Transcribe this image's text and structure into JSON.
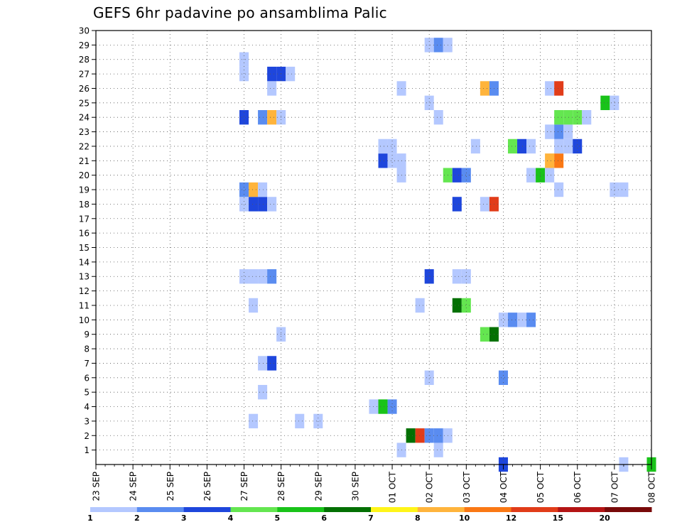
{
  "chart_data": {
    "type": "heatmap",
    "title": "GEFS 6hr padavine po ansamblima Palic",
    "xlabel": "",
    "ylabel": "",
    "x_start": "2025-09-23T00:00",
    "x_end": "2025-10-08T00:00",
    "x_step_hours": 6,
    "x_tick_labels": [
      "23 SEP",
      "24 SEP",
      "25 SEP",
      "26 SEP",
      "27 SEP",
      "28 SEP",
      "29 SEP",
      "30 SEP",
      "01 OCT",
      "02 OCT",
      "03 OCT",
      "04 OCT",
      "05 OCT",
      "06 OCT",
      "07 OCT",
      "08 OCT"
    ],
    "y_tick_labels": [
      "1",
      "2",
      "3",
      "4",
      "5",
      "6",
      "7",
      "8",
      "9",
      "10",
      "11",
      "12",
      "13",
      "14",
      "15",
      "16",
      "17",
      "18",
      "19",
      "20",
      "21",
      "22",
      "23",
      "24",
      "25",
      "26",
      "27",
      "28",
      "29",
      "30"
    ],
    "ylim": [
      0,
      30
    ],
    "grid": true,
    "colorbar": {
      "labels": [
        "1",
        "2",
        "3",
        "4",
        "5",
        "6",
        "7",
        "8",
        "10",
        "12",
        "15",
        "20"
      ],
      "colors": [
        "#b4c8ff",
        "#5a8cf0",
        "#1e46dc",
        "#64e650",
        "#19c319",
        "#037003",
        "#fff519",
        "#ffb43c",
        "#fa7814",
        "#e13c19",
        "#b41414",
        "#780a0a"
      ]
    },
    "cells": [
      {
        "x": "2025-10-01T06:00",
        "y": 1,
        "value": 1.5
      },
      {
        "x": "2025-10-02T06:00",
        "y": 1,
        "value": 1.5
      },
      {
        "x": "2025-10-01T12:00",
        "y": 2,
        "value": 6.5
      },
      {
        "x": "2025-10-01T18:00",
        "y": 2,
        "value": 13
      },
      {
        "x": "2025-10-02T00:00",
        "y": 2,
        "value": 2.5
      },
      {
        "x": "2025-10-02T06:00",
        "y": 2,
        "value": 2.5
      },
      {
        "x": "2025-10-02T12:00",
        "y": 2,
        "value": 1.5
      },
      {
        "x": "2025-09-27T06:00",
        "y": 3,
        "value": 1.5
      },
      {
        "x": "2025-09-28T12:00",
        "y": 3,
        "value": 1.5
      },
      {
        "x": "2025-09-29T00:00",
        "y": 3,
        "value": 1.5
      },
      {
        "x": "2025-09-30T12:00",
        "y": 4,
        "value": 1.5
      },
      {
        "x": "2025-09-30T18:00",
        "y": 4,
        "value": 5.5
      },
      {
        "x": "2025-10-01T00:00",
        "y": 4,
        "value": 2.5
      },
      {
        "x": "2025-09-27T12:00",
        "y": 5,
        "value": 1.5
      },
      {
        "x": "2025-10-02T00:00",
        "y": 6,
        "value": 1.5
      },
      {
        "x": "2025-10-04T00:00",
        "y": 6,
        "value": 2.5
      },
      {
        "x": "2025-09-27T12:00",
        "y": 7,
        "value": 1.5
      },
      {
        "x": "2025-09-27T18:00",
        "y": 7,
        "value": 3.5
      },
      {
        "x": "2025-09-28T00:00",
        "y": 9,
        "value": 1.5
      },
      {
        "x": "2025-10-03T12:00",
        "y": 9,
        "value": 4.5
      },
      {
        "x": "2025-10-03T18:00",
        "y": 9,
        "value": 6.5
      },
      {
        "x": "2025-10-04T00:00",
        "y": 10,
        "value": 1.5
      },
      {
        "x": "2025-10-04T06:00",
        "y": 10,
        "value": 2.5
      },
      {
        "x": "2025-10-04T12:00",
        "y": 10,
        "value": 1.5
      },
      {
        "x": "2025-10-04T18:00",
        "y": 10,
        "value": 2.5
      },
      {
        "x": "2025-09-27T06:00",
        "y": 11,
        "value": 1.5
      },
      {
        "x": "2025-10-01T18:00",
        "y": 11,
        "value": 1.5
      },
      {
        "x": "2025-10-02T18:00",
        "y": 11,
        "value": 6.5
      },
      {
        "x": "2025-10-03T00:00",
        "y": 11,
        "value": 4.5
      },
      {
        "x": "2025-09-27T00:00",
        "y": 13,
        "value": 1.5
      },
      {
        "x": "2025-09-27T06:00",
        "y": 13,
        "value": 1.5
      },
      {
        "x": "2025-09-27T12:00",
        "y": 13,
        "value": 1.5
      },
      {
        "x": "2025-09-27T18:00",
        "y": 13,
        "value": 2.5
      },
      {
        "x": "2025-10-02T00:00",
        "y": 13,
        "value": 3.5
      },
      {
        "x": "2025-10-02T18:00",
        "y": 13,
        "value": 1.5
      },
      {
        "x": "2025-10-03T00:00",
        "y": 13,
        "value": 1.5
      },
      {
        "x": "2025-09-27T00:00",
        "y": 18,
        "value": 1.5
      },
      {
        "x": "2025-09-27T06:00",
        "y": 18,
        "value": 3.5
      },
      {
        "x": "2025-09-27T12:00",
        "y": 18,
        "value": 3.5
      },
      {
        "x": "2025-09-27T18:00",
        "y": 18,
        "value": 1.5
      },
      {
        "x": "2025-10-02T18:00",
        "y": 18,
        "value": 3.5
      },
      {
        "x": "2025-10-03T12:00",
        "y": 18,
        "value": 1.5
      },
      {
        "x": "2025-10-03T18:00",
        "y": 18,
        "value": 13
      },
      {
        "x": "2025-09-27T00:00",
        "y": 19,
        "value": 2.5
      },
      {
        "x": "2025-09-27T06:00",
        "y": 19,
        "value": 9
      },
      {
        "x": "2025-09-27T12:00",
        "y": 19,
        "value": 1.5
      },
      {
        "x": "2025-10-05T12:00",
        "y": 19,
        "value": 1.5
      },
      {
        "x": "2025-10-02T12:00",
        "y": 20,
        "value": 4.5
      },
      {
        "x": "2025-10-02T18:00",
        "y": 20,
        "value": 3.5
      },
      {
        "x": "2025-10-03T00:00",
        "y": 20,
        "value": 2.5
      },
      {
        "x": "2025-10-04T18:00",
        "y": 20,
        "value": 1.5
      },
      {
        "x": "2025-10-05T00:00",
        "y": 20,
        "value": 5.5
      },
      {
        "x": "2025-10-05T06:00",
        "y": 20,
        "value": 1.5
      },
      {
        "x": "2025-10-01T06:00",
        "y": 20,
        "value": 1.5
      },
      {
        "x": "2025-10-07T00:00",
        "y": 19,
        "value": 1.5
      },
      {
        "x": "2025-10-07T06:00",
        "y": 19,
        "value": 1.5
      },
      {
        "x": "2025-09-30T18:00",
        "y": 21,
        "value": 3.5
      },
      {
        "x": "2025-10-01T00:00",
        "y": 21,
        "value": 1.5
      },
      {
        "x": "2025-10-01T06:00",
        "y": 21,
        "value": 1.5
      },
      {
        "x": "2025-10-05T06:00",
        "y": 21,
        "value": 8.5
      },
      {
        "x": "2025-10-05T12:00",
        "y": 21,
        "value": 11
      },
      {
        "x": "2025-09-30T18:00",
        "y": 22,
        "value": 1.5
      },
      {
        "x": "2025-10-01T00:00",
        "y": 22,
        "value": 1.5
      },
      {
        "x": "2025-10-03T06:00",
        "y": 22,
        "value": 1.5
      },
      {
        "x": "2025-10-04T06:00",
        "y": 22,
        "value": 4.5
      },
      {
        "x": "2025-10-04T12:00",
        "y": 22,
        "value": 3.5
      },
      {
        "x": "2025-10-04T18:00",
        "y": 22,
        "value": 1.5
      },
      {
        "x": "2025-10-05T12:00",
        "y": 22,
        "value": 1.5
      },
      {
        "x": "2025-10-05T18:00",
        "y": 22,
        "value": 1.5
      },
      {
        "x": "2025-10-06T00:00",
        "y": 22,
        "value": 3.5
      },
      {
        "x": "2025-10-05T06:00",
        "y": 23,
        "value": 1.5
      },
      {
        "x": "2025-10-05T12:00",
        "y": 23,
        "value": 2.5
      },
      {
        "x": "2025-10-05T18:00",
        "y": 23,
        "value": 1.5
      },
      {
        "x": "2025-09-27T00:00",
        "y": 24,
        "value": 3.5
      },
      {
        "x": "2025-09-27T12:00",
        "y": 24,
        "value": 2.5
      },
      {
        "x": "2025-09-27T18:00",
        "y": 24,
        "value": 8.5
      },
      {
        "x": "2025-09-28T00:00",
        "y": 24,
        "value": 1.5
      },
      {
        "x": "2025-10-02T06:00",
        "y": 24,
        "value": 1.5
      },
      {
        "x": "2025-10-05T12:00",
        "y": 24,
        "value": 4.5
      },
      {
        "x": "2025-10-05T18:00",
        "y": 24,
        "value": 4.5
      },
      {
        "x": "2025-10-06T00:00",
        "y": 24,
        "value": 4.5
      },
      {
        "x": "2025-10-06T06:00",
        "y": 24,
        "value": 1.5
      },
      {
        "x": "2025-10-02T00:00",
        "y": 25,
        "value": 1.5
      },
      {
        "x": "2025-10-06T18:00",
        "y": 25,
        "value": 5.5
      },
      {
        "x": "2025-10-07T00:00",
        "y": 25,
        "value": 1.5
      },
      {
        "x": "2025-09-27T18:00",
        "y": 26,
        "value": 1.5
      },
      {
        "x": "2025-10-01T06:00",
        "y": 26,
        "value": 1.5
      },
      {
        "x": "2025-10-03T12:00",
        "y": 26,
        "value": 9
      },
      {
        "x": "2025-10-03T18:00",
        "y": 26,
        "value": 2.5
      },
      {
        "x": "2025-10-05T06:00",
        "y": 26,
        "value": 1.5
      },
      {
        "x": "2025-10-05T12:00",
        "y": 26,
        "value": 13
      },
      {
        "x": "2025-09-27T00:00",
        "y": 27,
        "value": 1.5
      },
      {
        "x": "2025-09-27T18:00",
        "y": 27,
        "value": 3.5
      },
      {
        "x": "2025-09-28T00:00",
        "y": 27,
        "value": 3.5
      },
      {
        "x": "2025-09-28T06:00",
        "y": 27,
        "value": 1.5
      },
      {
        "x": "2025-09-27T00:00",
        "y": 28,
        "value": 1.5
      },
      {
        "x": "2025-10-02T00:00",
        "y": 29,
        "value": 1.5
      },
      {
        "x": "2025-10-02T06:00",
        "y": 29,
        "value": 2.5
      },
      {
        "x": "2025-10-02T12:00",
        "y": 29,
        "value": 1.5
      },
      {
        "x": "2025-10-04T00:00",
        "y": 0,
        "value": 3.5
      },
      {
        "x": "2025-10-07T06:00",
        "y": 0,
        "value": 1.5
      },
      {
        "x": "2025-10-08T00:00",
        "y": 0,
        "value": 5.5
      }
    ]
  }
}
